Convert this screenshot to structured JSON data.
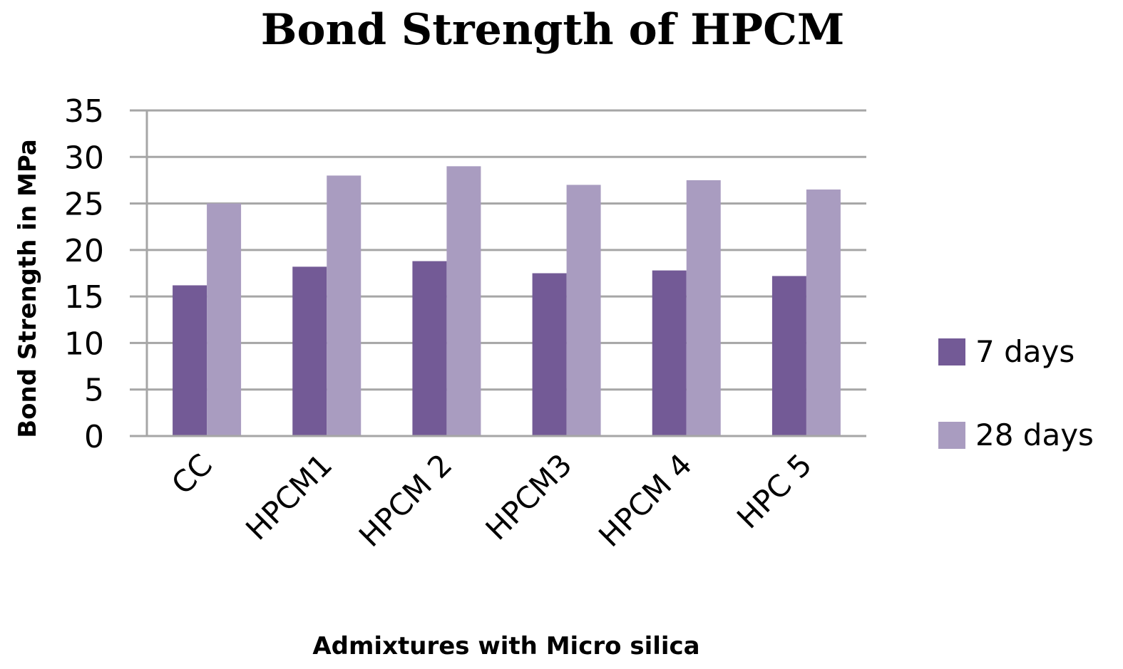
{
  "chart_data": {
    "type": "bar",
    "title": "Bond Strength of HPCM",
    "xlabel": "Admixtures with Micro silica",
    "ylabel": "Bond Strength in MPa",
    "ylim": [
      0,
      35
    ],
    "yticks": [
      0,
      5,
      10,
      15,
      20,
      25,
      30,
      35
    ],
    "categories": [
      "CC",
      "HPCM1",
      "HPCM 2",
      "HPCM3",
      "HPCM 4",
      "HPC 5"
    ],
    "series": [
      {
        "name": "7 days",
        "color": "#735a96",
        "values": [
          16.2,
          18.2,
          18.8,
          17.5,
          17.8,
          17.2
        ]
      },
      {
        "name": "28 days",
        "color": "#a99cc0",
        "values": [
          25.0,
          28.0,
          29.0,
          27.0,
          27.5,
          26.5
        ]
      }
    ],
    "grid": true,
    "legend_position": "right"
  }
}
